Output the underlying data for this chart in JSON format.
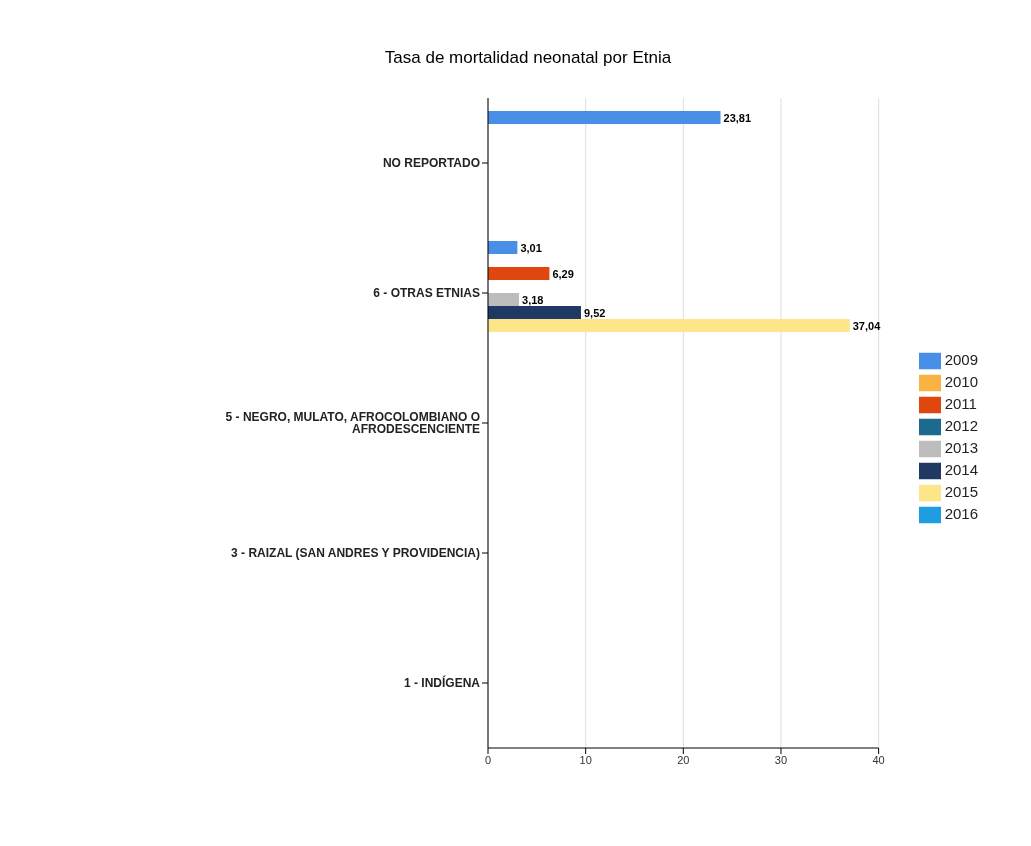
{
  "chart_data": {
    "type": "bar",
    "orientation": "horizontal",
    "title": "Tasa de mortalidad neonatal por Etnia",
    "categories": [
      "NO REPORTADO",
      "6 - OTRAS ETNIAS",
      "5 - NEGRO, MULATO, AFROCOLOMBIANO O AFRODESCENCIENTE",
      "3 - RAIZAL (SAN ANDRES Y PROVIDENCIA)",
      "1 - INDÍGENA"
    ],
    "series": [
      {
        "name": "2009",
        "color": "#4a8fe7",
        "values": [
          23.81,
          3.01,
          null,
          null,
          null
        ],
        "value_labels": [
          "23,81",
          "3,01",
          null,
          null,
          null
        ]
      },
      {
        "name": "2010",
        "color": "#f9b342",
        "values": [
          null,
          null,
          null,
          null,
          null
        ],
        "value_labels": [
          null,
          null,
          null,
          null,
          null
        ]
      },
      {
        "name": "2011",
        "color": "#e0470f",
        "values": [
          null,
          6.29,
          null,
          null,
          null
        ],
        "value_labels": [
          null,
          "6,29",
          null,
          null,
          null
        ]
      },
      {
        "name": "2012",
        "color": "#1d6a8f",
        "values": [
          null,
          null,
          null,
          null,
          null
        ],
        "value_labels": [
          null,
          null,
          null,
          null,
          null
        ]
      },
      {
        "name": "2013",
        "color": "#bdbdbd",
        "values": [
          null,
          3.18,
          null,
          null,
          null
        ],
        "value_labels": [
          null,
          "3,18",
          null,
          null,
          null
        ]
      },
      {
        "name": "2014",
        "color": "#1f3864",
        "values": [
          null,
          9.52,
          null,
          null,
          null
        ],
        "value_labels": [
          null,
          "9,52",
          null,
          null,
          null
        ]
      },
      {
        "name": "2015",
        "color": "#fde68a",
        "values": [
          null,
          37.04,
          null,
          null,
          null
        ],
        "value_labels": [
          null,
          "37,04",
          null,
          null,
          null
        ]
      },
      {
        "name": "2016",
        "color": "#1e9ee0",
        "values": [
          null,
          null,
          null,
          null,
          null
        ],
        "value_labels": [
          null,
          null,
          null,
          null,
          null
        ]
      }
    ],
    "xlim": [
      0,
      40
    ],
    "xticks": [
      0,
      10,
      20,
      30,
      40
    ],
    "grid": "x",
    "legend": "right"
  }
}
